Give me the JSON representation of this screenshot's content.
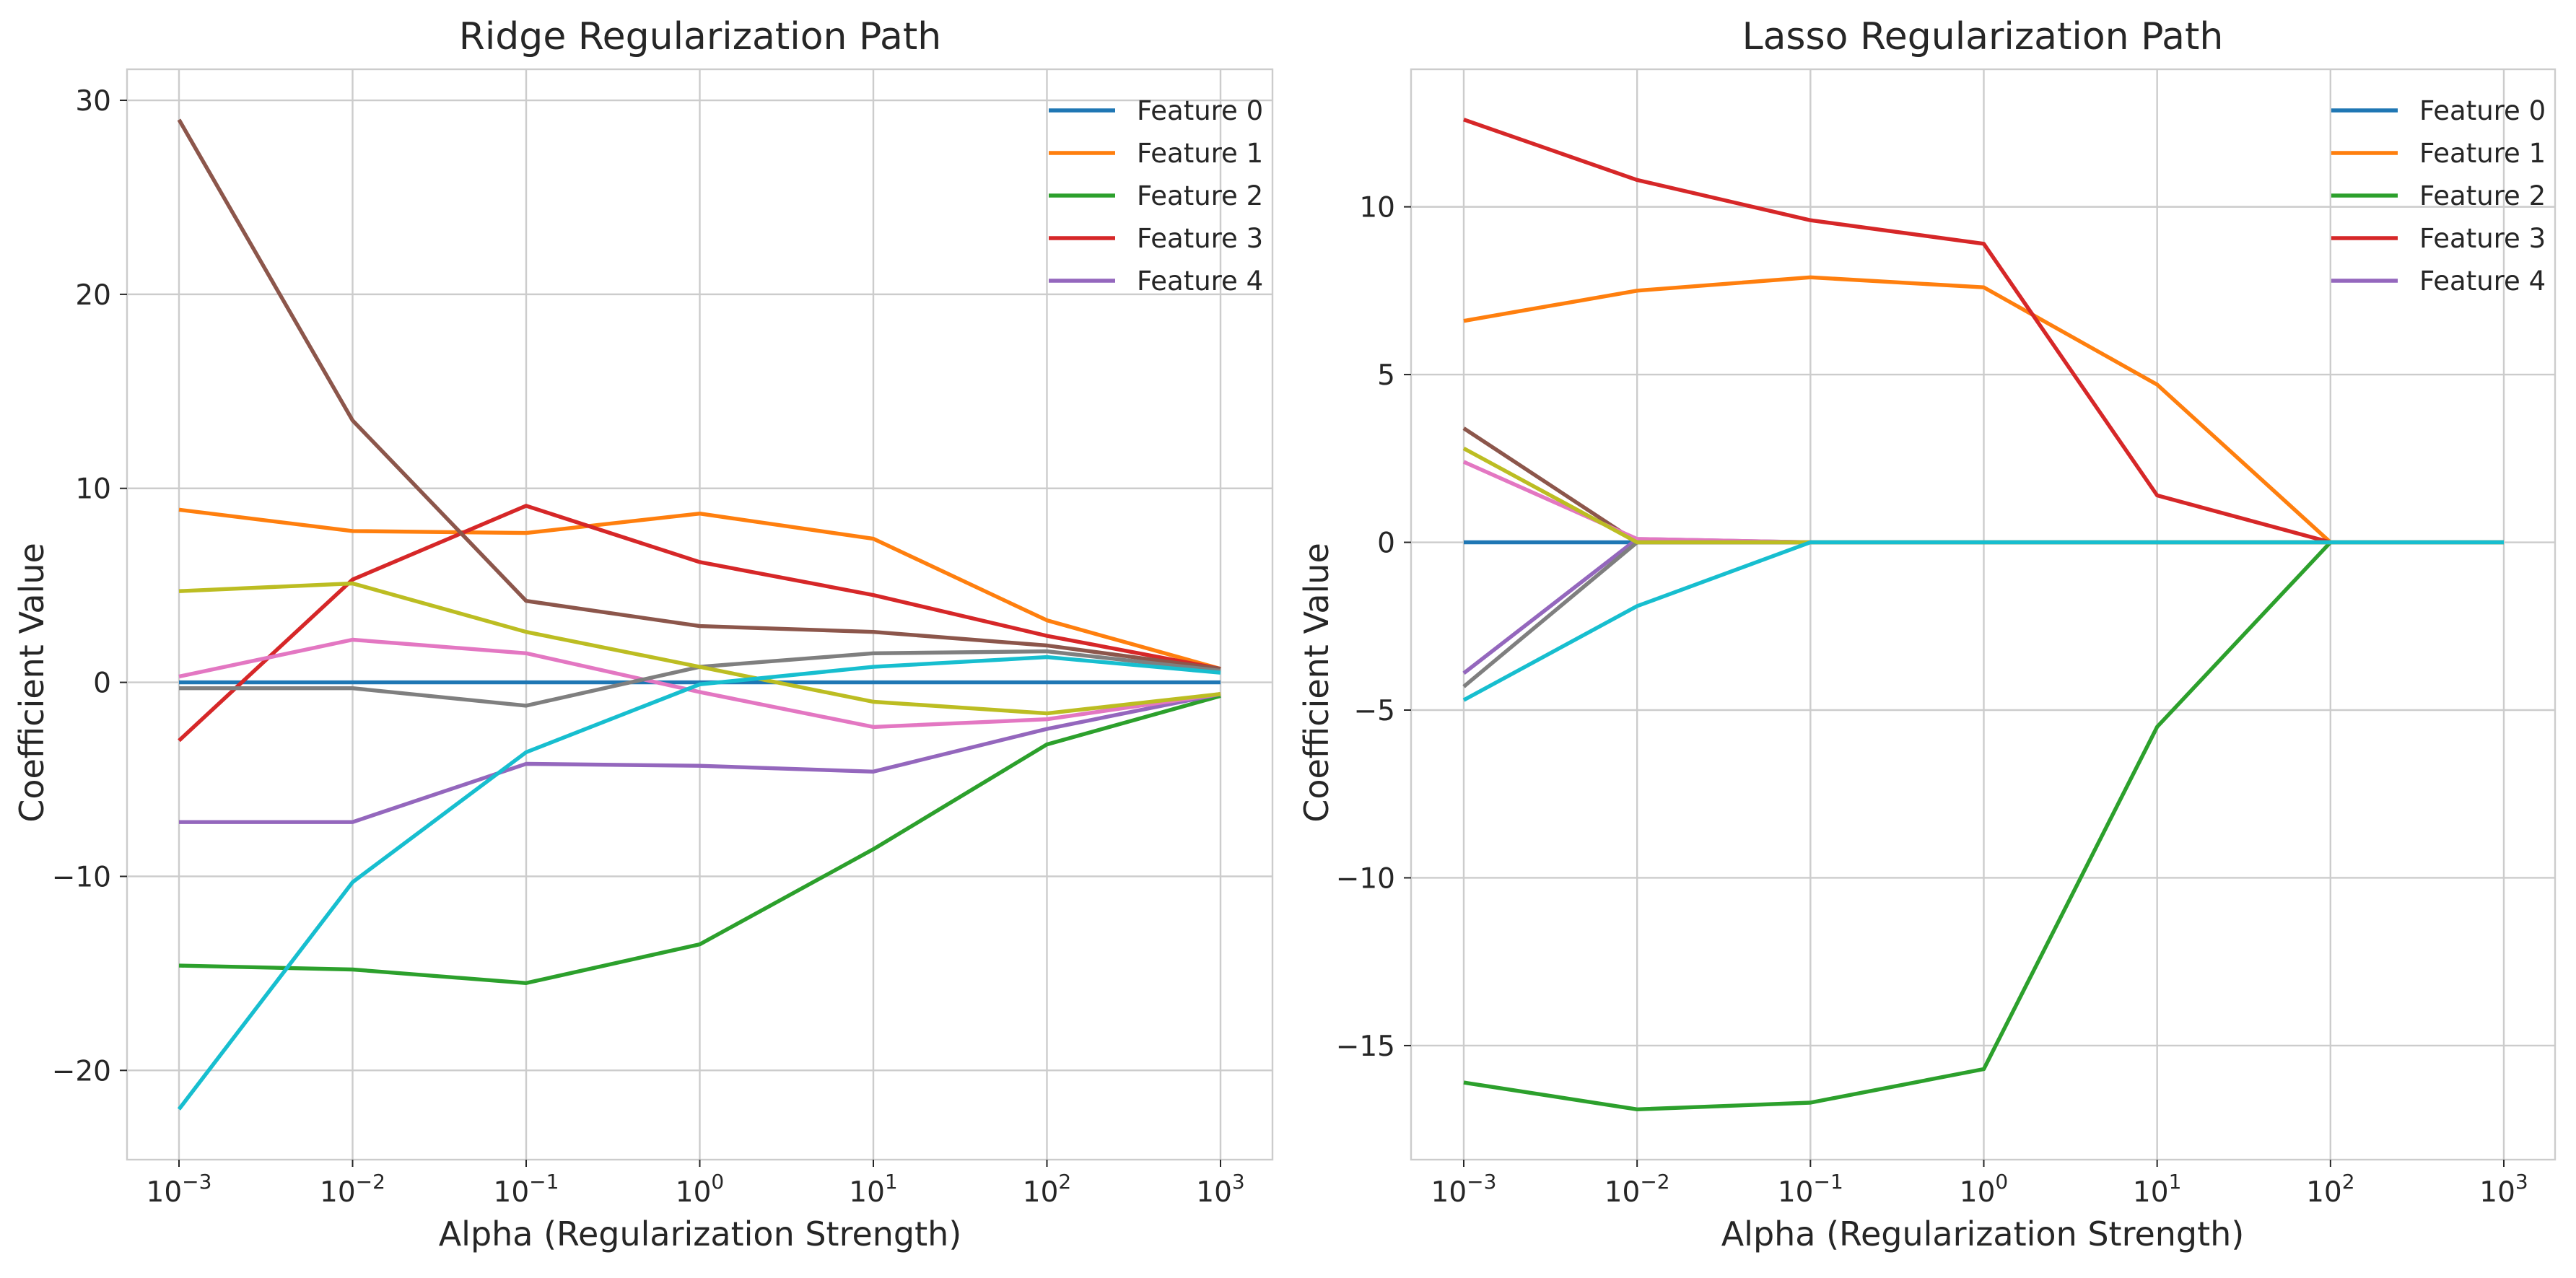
{
  "figure": {
    "panels": [
      "ridge",
      "lasso"
    ]
  },
  "chart_data": [
    {
      "type": "line",
      "title": "Ridge Regularization Path",
      "xlabel": "Alpha (Regularization Strength)",
      "ylabel": "Coefficient Value",
      "xscale": "log",
      "x": [
        0.001,
        0.01,
        0.1,
        1,
        10,
        100,
        1000
      ],
      "xticks": [
        {
          "base": "10",
          "exp": "−3"
        },
        {
          "base": "10",
          "exp": "−2"
        },
        {
          "base": "10",
          "exp": "−1"
        },
        {
          "base": "10",
          "exp": "0"
        },
        {
          "base": "10",
          "exp": "1"
        },
        {
          "base": "10",
          "exp": "2"
        },
        {
          "base": "10",
          "exp": "3"
        }
      ],
      "ylim": [
        -24.6,
        31.6
      ],
      "yticks": [
        -20,
        -10,
        0,
        10,
        20,
        30
      ],
      "ytick_labels": [
        "−20",
        "−10",
        "0",
        "10",
        "20",
        "30"
      ],
      "grid": true,
      "legend_position": "top-right",
      "series": [
        {
          "name": "Feature 0",
          "color": "#1f77b4",
          "values": [
            0,
            0,
            0,
            0,
            0,
            0,
            0
          ]
        },
        {
          "name": "Feature 1",
          "color": "#ff7f0e",
          "values": [
            8.9,
            7.8,
            7.7,
            8.7,
            7.4,
            3.2,
            0.7
          ]
        },
        {
          "name": "Feature 2",
          "color": "#2ca02c",
          "values": [
            -14.6,
            -14.8,
            -15.5,
            -13.5,
            -8.6,
            -3.2,
            -0.7
          ]
        },
        {
          "name": "Feature 3",
          "color": "#d62728",
          "values": [
            -3.0,
            5.3,
            9.1,
            6.2,
            4.5,
            2.4,
            0.7
          ]
        },
        {
          "name": "Feature 4",
          "color": "#9467bd",
          "values": [
            -7.2,
            -7.2,
            -4.2,
            -4.3,
            -4.6,
            -2.4,
            -0.6
          ]
        },
        {
          "color": "#8c564b",
          "values": [
            29.0,
            13.5,
            4.2,
            2.9,
            2.6,
            1.9,
            0.7
          ]
        },
        {
          "color": "#e377c2",
          "values": [
            0.3,
            2.2,
            1.5,
            -0.5,
            -2.3,
            -1.9,
            -0.6
          ]
        },
        {
          "color": "#7f7f7f",
          "values": [
            -0.3,
            -0.3,
            -1.2,
            0.8,
            1.5,
            1.6,
            0.6
          ]
        },
        {
          "color": "#bcbd22",
          "values": [
            4.7,
            5.1,
            2.6,
            0.8,
            -1.0,
            -1.6,
            -0.6
          ]
        },
        {
          "color": "#17becf",
          "values": [
            -22.0,
            -10.3,
            -3.6,
            -0.1,
            0.8,
            1.3,
            0.5
          ]
        }
      ]
    },
    {
      "type": "line",
      "title": "Lasso Regularization Path",
      "xlabel": "Alpha (Regularization Strength)",
      "ylabel": "Coefficient Value",
      "xscale": "log",
      "x": [
        0.001,
        0.01,
        0.1,
        1,
        10,
        100,
        1000
      ],
      "xticks": [
        {
          "base": "10",
          "exp": "−3"
        },
        {
          "base": "10",
          "exp": "−2"
        },
        {
          "base": "10",
          "exp": "−1"
        },
        {
          "base": "10",
          "exp": "0"
        },
        {
          "base": "10",
          "exp": "1"
        },
        {
          "base": "10",
          "exp": "2"
        },
        {
          "base": "10",
          "exp": "3"
        }
      ],
      "ylim": [
        -18.4,
        14.1
      ],
      "yticks": [
        -15,
        -10,
        -5,
        0,
        5,
        10
      ],
      "ytick_labels": [
        "−15",
        "−10",
        "−5",
        "0",
        "5",
        "10"
      ],
      "grid": true,
      "legend_position": "top-right",
      "series": [
        {
          "name": "Feature 0",
          "color": "#1f77b4",
          "values": [
            0,
            0,
            0,
            0,
            0,
            0,
            0
          ]
        },
        {
          "name": "Feature 1",
          "color": "#ff7f0e",
          "values": [
            6.6,
            7.5,
            7.9,
            7.6,
            4.7,
            0,
            0
          ]
        },
        {
          "name": "Feature 2",
          "color": "#2ca02c",
          "values": [
            -16.1,
            -16.9,
            -16.7,
            -15.7,
            -5.5,
            0,
            0
          ]
        },
        {
          "name": "Feature 3",
          "color": "#d62728",
          "values": [
            12.6,
            10.8,
            9.6,
            8.9,
            1.4,
            0,
            0
          ]
        },
        {
          "name": "Feature 4",
          "color": "#9467bd",
          "values": [
            -3.9,
            0.1,
            0,
            0,
            0,
            0,
            0
          ]
        },
        {
          "color": "#8c564b",
          "values": [
            3.4,
            0,
            0,
            0,
            0,
            0,
            0
          ]
        },
        {
          "color": "#e377c2",
          "values": [
            2.4,
            0.1,
            0,
            0,
            0,
            0,
            0
          ]
        },
        {
          "color": "#7f7f7f",
          "values": [
            -4.3,
            0,
            0,
            0,
            0,
            0,
            0
          ]
        },
        {
          "color": "#bcbd22",
          "values": [
            2.8,
            0,
            0,
            0,
            0,
            0,
            0
          ]
        },
        {
          "color": "#17becf",
          "values": [
            -4.7,
            -1.9,
            0,
            0,
            0,
            0,
            0
          ]
        }
      ]
    }
  ]
}
